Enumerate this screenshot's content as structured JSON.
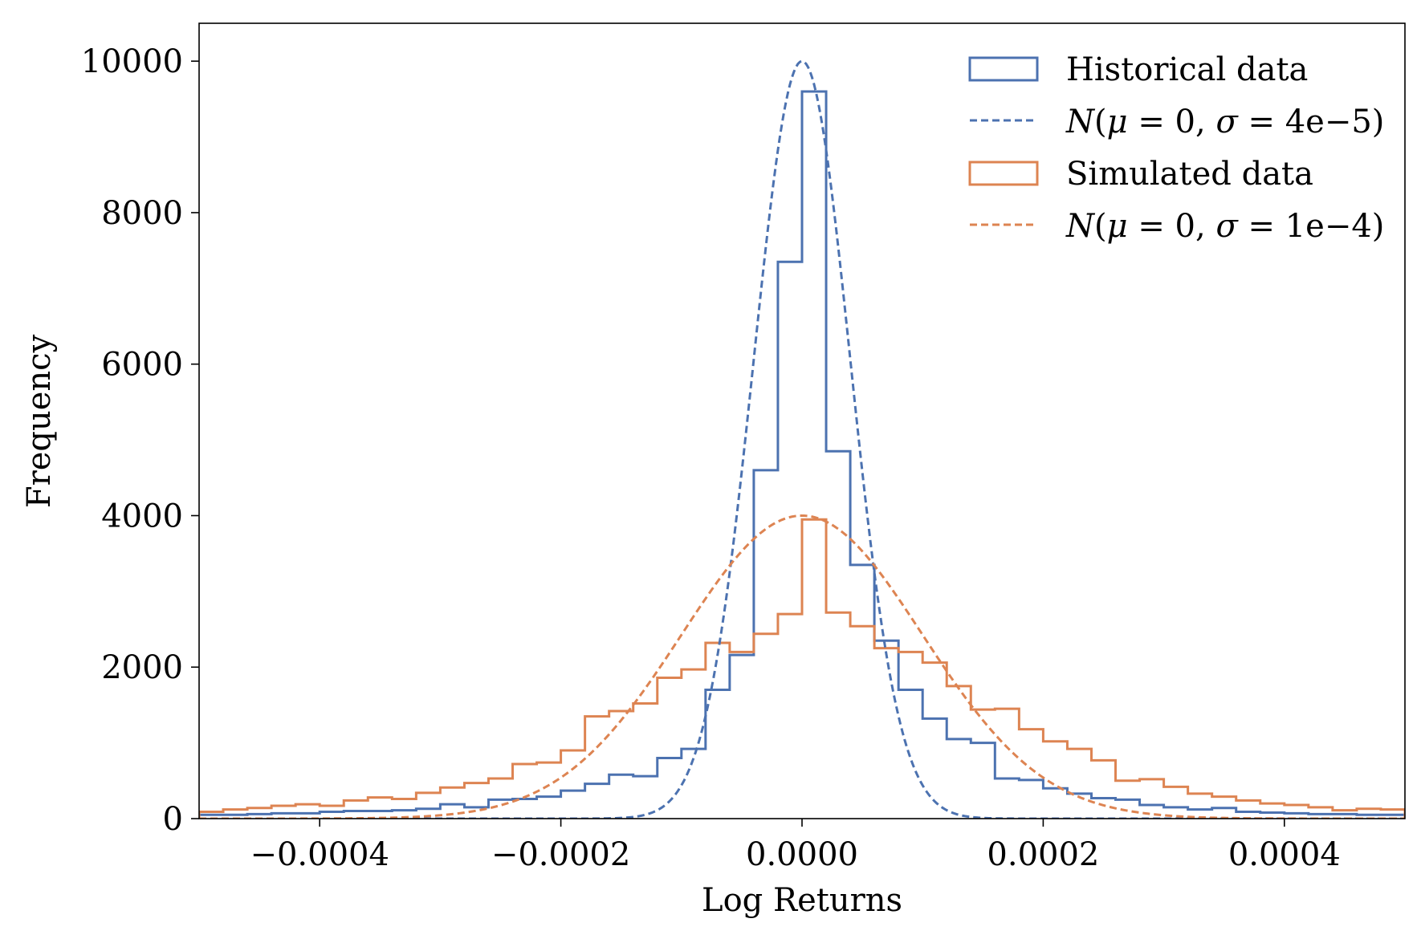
{
  "chart_data": {
    "type": "histogram",
    "xlabel": "Log Returns",
    "ylabel": "Frequency",
    "xlim": [
      -0.0005,
      0.0005
    ],
    "ylim": [
      0,
      10500
    ],
    "x_ticks": [
      -0.0004,
      -0.0002,
      0.0,
      0.0002,
      0.0004
    ],
    "x_tick_labels": [
      "−0.0004",
      "−0.0002",
      "0.0000",
      "0.0002",
      "0.0004"
    ],
    "y_ticks": [
      0,
      2000,
      4000,
      6000,
      8000,
      10000
    ],
    "y_tick_labels": [
      "0",
      "2000",
      "4000",
      "6000",
      "8000",
      "10000"
    ],
    "grid": false,
    "legend_position": "top-right",
    "bin_edges": [
      -0.0005,
      -0.00048,
      -0.00046,
      -0.00044,
      -0.00042,
      -0.0004,
      -0.00038,
      -0.00036,
      -0.00034,
      -0.00032,
      -0.0003,
      -0.00028,
      -0.00026,
      -0.00024,
      -0.00022,
      -0.0002,
      -0.00018,
      -0.00016,
      -0.00014,
      -0.00012,
      -0.0001,
      -8e-05,
      -6e-05,
      -4e-05,
      -2e-05,
      0.0,
      2e-05,
      4e-05,
      6e-05,
      8e-05,
      0.0001,
      0.00012,
      0.00014,
      0.00016,
      0.00018,
      0.0002,
      0.00022,
      0.00024,
      0.00026,
      0.00028,
      0.0003,
      0.00032,
      0.00034,
      0.00036,
      0.00038,
      0.0004,
      0.00042,
      0.00044,
      0.00046,
      0.00048,
      0.0005
    ],
    "histograms": [
      {
        "name": "Historical data",
        "color": "#4c72b0",
        "counts": [
          50,
          50,
          60,
          70,
          70,
          90,
          100,
          100,
          110,
          130,
          190,
          150,
          250,
          260,
          290,
          370,
          460,
          580,
          560,
          800,
          920,
          1700,
          2160,
          4600,
          7350,
          9600,
          4850,
          3350,
          2350,
          1700,
          1320,
          1050,
          1000,
          530,
          510,
          400,
          330,
          270,
          250,
          180,
          150,
          120,
          140,
          90,
          80,
          70,
          60,
          60,
          50,
          50
        ]
      },
      {
        "name": "Simulated data",
        "color": "#dd8452",
        "counts": [
          90,
          120,
          140,
          170,
          190,
          170,
          240,
          280,
          260,
          340,
          410,
          470,
          530,
          720,
          740,
          900,
          1350,
          1420,
          1520,
          1860,
          1970,
          2320,
          2200,
          2440,
          2700,
          3950,
          2720,
          2540,
          2250,
          2200,
          2060,
          1750,
          1440,
          1450,
          1180,
          1020,
          920,
          770,
          500,
          520,
          420,
          330,
          290,
          240,
          200,
          180,
          150,
          110,
          130,
          120
        ]
      }
    ],
    "normal_curves": [
      {
        "name": "N(μ=0, σ=4e−5)",
        "color": "#4c72b0",
        "mu": 0,
        "sigma": 4e-05,
        "peak": 10000
      },
      {
        "name": "N(μ=0, σ=1e−4)",
        "color": "#dd8452",
        "mu": 0,
        "sigma": 0.0001,
        "peak": 4000
      }
    ]
  }
}
